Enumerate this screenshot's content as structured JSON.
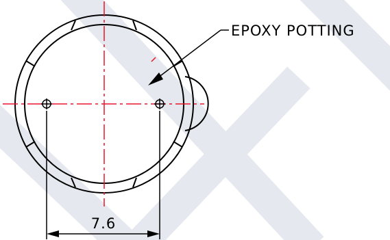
{
  "drawing": {
    "callout_label": "EPOXY POTTING",
    "dimension_label": "7.6",
    "colors": {
      "line": "#000000",
      "centerline": "#e8142a",
      "watermark": "#e5e8ee"
    }
  }
}
